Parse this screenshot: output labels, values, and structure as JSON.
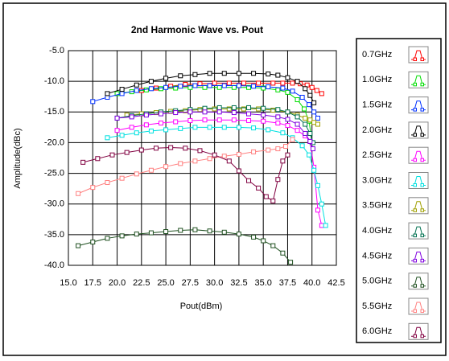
{
  "chart_data": {
    "type": "line",
    "title": "2nd Harmonic Wave vs. Pout",
    "xlabel": "Pout(dBm)",
    "ylabel": "Amplitude(dBc)",
    "xlim": [
      15,
      42.5
    ],
    "xticks": [
      {
        "value": 15,
        "label": "15.0"
      },
      {
        "value": 17.5,
        "label": "17.5"
      },
      {
        "value": 20,
        "label": "20.0"
      },
      {
        "value": 22.5,
        "label": "22.5"
      },
      {
        "value": 25,
        "label": "25.0"
      },
      {
        "value": 27.5,
        "label": "27.5"
      },
      {
        "value": 30,
        "label": "30.0"
      },
      {
        "value": 32.5,
        "label": "32.5"
      },
      {
        "value": 35,
        "label": "35.0"
      },
      {
        "value": 37.5,
        "label": "37.5"
      },
      {
        "value": 40,
        "label": "40.0"
      },
      {
        "value": 42.5,
        "label": "42.5"
      }
    ],
    "ylim": [
      -40,
      -5
    ],
    "yticks": [
      {
        "value": -5,
        "label": "-5.0"
      },
      {
        "value": -10,
        "label": "-10.0"
      },
      {
        "value": -15,
        "label": "-15.0"
      },
      {
        "value": -20,
        "label": "-20.0"
      },
      {
        "value": -25,
        "label": "-25.0"
      },
      {
        "value": -30,
        "label": "-30.0"
      },
      {
        "value": -35,
        "label": "-35.0"
      },
      {
        "value": -40,
        "label": "-40.0"
      }
    ],
    "grid": true,
    "legend": "right",
    "series": [
      {
        "name": "0.7GHz",
        "color": "#ff0000",
        "x": [
          22.5,
          24,
          25.5,
          27,
          28.5,
          30,
          31.5,
          33,
          34.5,
          36,
          37,
          38,
          38.8,
          39.5,
          40,
          40.5,
          41
        ],
        "values": [
          -11.5,
          -11.1,
          -10.8,
          -10.5,
          -10.4,
          -10.3,
          -10.3,
          -10.3,
          -10.3,
          -10.3,
          -10.3,
          -10.3,
          -10.4,
          -10.6,
          -11,
          -11.5,
          -12
        ]
      },
      {
        "name": "1.0GHz",
        "color": "#00dd00",
        "x": [
          20,
          21.5,
          23,
          24.5,
          26,
          27.5,
          29,
          30.5,
          32,
          33.5,
          35,
          36.5,
          37.5,
          38.5,
          39.2,
          39.7,
          40
        ],
        "values": [
          -12,
          -11.7,
          -11.4,
          -11.2,
          -11.1,
          -11,
          -11,
          -11,
          -11,
          -11,
          -11.1,
          -11.4,
          -11.8,
          -13,
          -14.5,
          -16.5,
          -20
        ]
      },
      {
        "name": "1.5GHz",
        "color": "#0030ff",
        "x": [
          17.5,
          19,
          20.5,
          22,
          23.5,
          25,
          26.5,
          28,
          29.5,
          31,
          32.5,
          34,
          35.5,
          37,
          38,
          39,
          39.7,
          40.2,
          40.6
        ],
        "values": [
          -13.3,
          -12.6,
          -12,
          -11.5,
          -11.2,
          -11,
          -10.8,
          -10.7,
          -10.7,
          -10.7,
          -10.7,
          -10.8,
          -10.9,
          -11.1,
          -11.6,
          -12.6,
          -13.8,
          -15,
          -16
        ]
      },
      {
        "name": "2.0GHz",
        "color": "#000000",
        "x": [
          19,
          20.5,
          22,
          23.5,
          25,
          26.5,
          28,
          29.5,
          31,
          32.5,
          34,
          35.5,
          36.5,
          37.5,
          38.5,
          39.3,
          39.8,
          40.2
        ],
        "values": [
          -12,
          -11.3,
          -10.6,
          -10,
          -9.5,
          -9.1,
          -8.9,
          -8.7,
          -8.7,
          -8.7,
          -8.7,
          -8.8,
          -9,
          -9.4,
          -10,
          -11.2,
          -12.3,
          -13.5
        ]
      },
      {
        "name": "2.5GHz",
        "color": "#ff00ff",
        "x": [
          20,
          21.5,
          23,
          24.5,
          26,
          27.5,
          29,
          30.5,
          32,
          33.5,
          35,
          36.5,
          37.5,
          38.5,
          39.3,
          39.8,
          40.2,
          40.6,
          41
        ],
        "values": [
          -18,
          -17.5,
          -17.1,
          -16.8,
          -16.6,
          -16.4,
          -16.3,
          -16.3,
          -16.3,
          -16.4,
          -16.5,
          -16.8,
          -17.2,
          -18,
          -18.9,
          -19.8,
          -24,
          -31,
          -33.5
        ]
      },
      {
        "name": "3.0GHz",
        "color": "#00e0e0",
        "x": [
          19,
          20.5,
          22,
          23.5,
          25,
          26.5,
          28,
          29.5,
          31,
          32.5,
          34,
          35.5,
          37,
          38,
          39,
          39.7,
          40.2,
          40.6,
          41,
          41.4
        ],
        "values": [
          -19.2,
          -18.8,
          -18.4,
          -18.1,
          -17.9,
          -17.7,
          -17.5,
          -17.5,
          -17.5,
          -17.5,
          -17.6,
          -17.9,
          -18.4,
          -19.2,
          -20.5,
          -22,
          -24.5,
          -27,
          -30,
          -33.5
        ]
      },
      {
        "name": "3.5GHz",
        "color": "#a0a000",
        "x": [
          21,
          22.5,
          24,
          25.5,
          27,
          28.5,
          30,
          31.5,
          33,
          34.5,
          36,
          37.5,
          38.5,
          39.3,
          39.8,
          40.2,
          40.6
        ],
        "values": [
          -15.5,
          -15.3,
          -15.1,
          -14.9,
          -14.8,
          -14.6,
          -14.5,
          -14.5,
          -14.5,
          -14.5,
          -14.7,
          -15,
          -15.5,
          -16,
          -16.3,
          -16.7,
          -17
        ]
      },
      {
        "name": "4.0GHz",
        "color": "#007050",
        "x": [
          20,
          21.5,
          23,
          24.5,
          26,
          27.5,
          29,
          30.5,
          32,
          33.5,
          35,
          36.5,
          37.5,
          38.5,
          39.3,
          39.8,
          40.1
        ],
        "values": [
          -16,
          -15.6,
          -15.3,
          -15,
          -14.8,
          -14.6,
          -14.4,
          -14.3,
          -14.3,
          -14.3,
          -14.4,
          -14.6,
          -15,
          -15.8,
          -17,
          -18.5,
          -20
        ]
      },
      {
        "name": "4.5GHz",
        "color": "#8000e0",
        "x": [
          20,
          21.5,
          23,
          24.5,
          26,
          27.5,
          29,
          30.5,
          32,
          33.5,
          35,
          36.5,
          37.5,
          38.5,
          39.3,
          39.8,
          40.1
        ],
        "values": [
          -16,
          -15.8,
          -15.5,
          -15.3,
          -15.1,
          -15,
          -15,
          -15,
          -15.1,
          -15.3,
          -15.5,
          -15.8,
          -16.2,
          -17,
          -18.5,
          -19.8,
          -21
        ]
      },
      {
        "name": "5.0GHz",
        "color": "#1f5020",
        "x": [
          16,
          17.5,
          19,
          20.5,
          22,
          23.5,
          25,
          26.5,
          28,
          29.5,
          31,
          32.5,
          34,
          35,
          36,
          37,
          37.8
        ],
        "values": [
          -36.8,
          -36.2,
          -35.6,
          -35.2,
          -34.9,
          -34.7,
          -34.5,
          -34.3,
          -34.2,
          -34.4,
          -34.6,
          -34.9,
          -35.4,
          -36,
          -36.8,
          -38,
          -39.5
        ]
      },
      {
        "name": "5.5GHz",
        "color": "#ff8080",
        "x": [
          16,
          17.5,
          19,
          20.5,
          22,
          23.5,
          25,
          26.5,
          28,
          29.5,
          31,
          32.5,
          34,
          35.5,
          36.5,
          37.3,
          38
        ],
        "values": [
          -28.3,
          -27.3,
          -26.5,
          -25.8,
          -25.1,
          -24.5,
          -23.9,
          -23.4,
          -23,
          -22.6,
          -22.2,
          -21.9,
          -21.5,
          -21.2,
          -21,
          -20.6,
          -19.5
        ]
      },
      {
        "name": "6.0GHz",
        "color": "#800040",
        "x": [
          16.5,
          18,
          19.5,
          21,
          22.5,
          24,
          25.5,
          27,
          28.5,
          30,
          31.5,
          32.5,
          33.5,
          34.5,
          35.3,
          36,
          36.5,
          37,
          37.5
        ],
        "values": [
          -23.2,
          -22.6,
          -22,
          -21.6,
          -21.2,
          -20.9,
          -20.8,
          -20.9,
          -21.3,
          -22,
          -23,
          -24.6,
          -26.2,
          -27.4,
          -28.8,
          -29.5,
          -26,
          -23,
          -22
        ]
      }
    ]
  }
}
